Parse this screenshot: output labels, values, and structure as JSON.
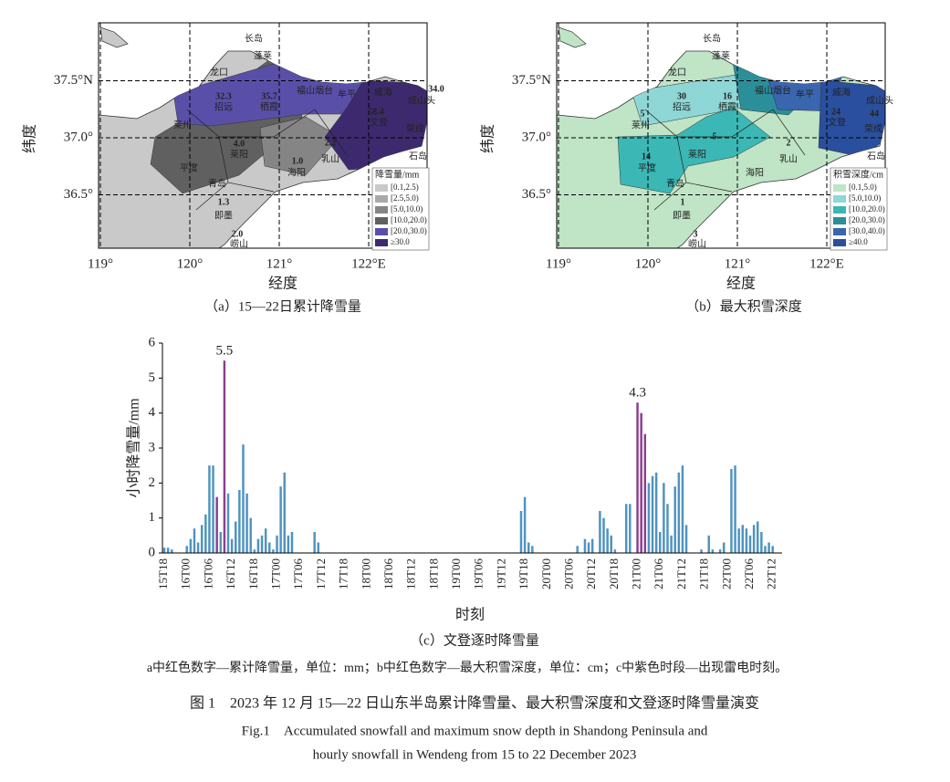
{
  "map_axes": {
    "xticks": [
      {
        "value": 119,
        "label": "119°"
      },
      {
        "value": 120,
        "label": "120°"
      },
      {
        "value": 121,
        "label": "121°"
      },
      {
        "value": 122,
        "label": "122°E"
      }
    ],
    "yticks": [
      {
        "value": 36.5,
        "label": "36.5°"
      },
      {
        "value": 37,
        "label": "37.0°"
      },
      {
        "value": 37.5,
        "label": "37.5°N"
      }
    ],
    "xlabel": "经度",
    "ylabel": "纬度"
  },
  "places": [
    "长岛",
    "蓬莱",
    "龙口",
    "招远",
    "栖霞",
    "福山烟台",
    "牟平",
    "威海",
    "成山头",
    "莱州",
    "文登",
    "荣成",
    "石岛",
    "莱阳",
    "海阳",
    "乳山",
    "平度",
    "青岛",
    "即墨",
    "崂山"
  ],
  "map_a": {
    "caption": "（a）15—22日累计降雪量",
    "legend_title": "降雪量/mm",
    "legend": [
      "[0.1,2.5)",
      "[2.5,5.0)",
      "[5.0,10.0)",
      "[10.0,20.0)",
      "[20.0,30.0)",
      "≥30.0"
    ],
    "colors": [
      "#c9c9c9",
      "#a9a9a9",
      "#858585",
      "#606060",
      "#5a4fa8",
      "#3d2a6e"
    ],
    "labels": [
      "32.3",
      "35.7",
      "58.4",
      "34.0",
      "4.0",
      "2.2",
      "1.0",
      "1.3",
      "2.0"
    ]
  },
  "map_b": {
    "caption": "（b）最大积雪深度",
    "legend_title": "积雪深度/cm",
    "legend": [
      "[0.1,5.0)",
      "[5.0,10.0)",
      "[10.0,20.0)",
      "[20.0,30.0)",
      "[30.0,40.0)",
      "≥40.0"
    ],
    "colors": [
      "#bfe4c6",
      "#8fd6d6",
      "#3bb7b5",
      "#2b8f9a",
      "#3a66b0",
      "#2a4f9e"
    ],
    "labels": [
      "30",
      "16",
      "24",
      "44",
      "5",
      "14",
      "1",
      "3",
      "2",
      "5"
    ]
  },
  "chart_data": {
    "type": "bar",
    "caption": "（c）文登逐时降雪量",
    "xlabel": "时刻",
    "ylabel": "小时降雪量/mm",
    "ylim": [
      0,
      6
    ],
    "yticks": [
      0,
      1,
      2,
      3,
      4,
      5,
      6
    ],
    "categories": [
      "15T18",
      null,
      null,
      null,
      null,
      null,
      "16T00",
      null,
      null,
      null,
      null,
      null,
      "16T06",
      null,
      null,
      null,
      null,
      null,
      "16T12",
      null,
      null,
      null,
      null,
      null,
      "16T18",
      null,
      null,
      null,
      null,
      null,
      "17T00",
      null,
      null,
      null,
      null,
      null,
      "17T06",
      null,
      null,
      null,
      null,
      null,
      "17T12",
      null,
      null,
      null,
      null,
      null,
      "17T18",
      null,
      null,
      null,
      null,
      null,
      "18T00",
      null,
      null,
      null,
      null,
      null,
      "18T06",
      null,
      null,
      null,
      null,
      null,
      "18T12",
      null,
      null,
      null,
      null,
      null,
      "18T18",
      null,
      null,
      null,
      null,
      null,
      "19T00",
      null,
      null,
      null,
      null,
      null,
      "19T06",
      null,
      null,
      null,
      null,
      null,
      "19T12",
      null,
      null,
      null,
      null,
      null,
      "19T18",
      null,
      null,
      null,
      null,
      null,
      "20T00",
      null,
      null,
      null,
      null,
      null,
      "20T06",
      null,
      null,
      null,
      null,
      null,
      "20T12",
      null,
      null,
      null,
      null,
      null,
      "20T18",
      null,
      null,
      null,
      null,
      null,
      "21T00",
      null,
      null,
      null,
      null,
      null,
      "21T06",
      null,
      null,
      null,
      null,
      null,
      "21T12",
      null,
      null,
      null,
      null,
      null,
      "21T18",
      null,
      null,
      null,
      null,
      null,
      "22T00",
      null,
      null,
      null,
      null,
      null,
      "22T06",
      null,
      null,
      null,
      null,
      null,
      "22T12",
      null,
      null
    ],
    "series": [
      {
        "color": "#4f93c0",
        "values": [
          0.15,
          0.15,
          0.1,
          0,
          0,
          0,
          0.2,
          0.4,
          0.7,
          0.3,
          0.8,
          1.1,
          2.5,
          2.5,
          null,
          0.6,
          null,
          1.7,
          0.4,
          0.9,
          1.8,
          3.1,
          1.7,
          1.0,
          0.1,
          0.4,
          0.5,
          0.7,
          0.3,
          0.1,
          0.5,
          1.9,
          2.3,
          0.5,
          0.6,
          0,
          0,
          0,
          0,
          0,
          0.6,
          0.3,
          0,
          0,
          0,
          0,
          0,
          0,
          0,
          0,
          0,
          0,
          0,
          0,
          0,
          0,
          0,
          0,
          0,
          0,
          0,
          0,
          0,
          0,
          0,
          0,
          0,
          0,
          0,
          0,
          0,
          0,
          0,
          0,
          0,
          0,
          0,
          0,
          0,
          0,
          0,
          0,
          0,
          0,
          0,
          0,
          0,
          0,
          0,
          0,
          0,
          0,
          0,
          0,
          0,
          1.2,
          1.6,
          0.3,
          0.2,
          0,
          0,
          0,
          0,
          0,
          0,
          0,
          0,
          0,
          0,
          0,
          0.2,
          0,
          0.4,
          0.3,
          0.4,
          0,
          1.2,
          1.0,
          0.7,
          0.5,
          0.1,
          0,
          0,
          1.4,
          1.4,
          0,
          null,
          null,
          null,
          2.0,
          2.2,
          2.3,
          0.6,
          2.0,
          1.4,
          0.5,
          1.9,
          2.3,
          2.5,
          0.8,
          0,
          0,
          0,
          0.1,
          0,
          0.5,
          0.1,
          0,
          0.1,
          0.3,
          0,
          2.4,
          2.5,
          0.7,
          0.8,
          0.7,
          0.5,
          0.8,
          0.9,
          0.6,
          0.2,
          0.3,
          0.2,
          0,
          0
        ]
      },
      {
        "color": "#8a3f8f",
        "values": [
          null,
          null,
          null,
          null,
          null,
          null,
          null,
          null,
          null,
          null,
          null,
          null,
          null,
          null,
          1.6,
          null,
          5.5,
          null,
          null,
          null,
          null,
          null,
          null,
          null,
          null,
          null,
          null,
          null,
          null,
          null,
          null,
          null,
          null,
          null,
          null,
          null,
          null,
          null,
          null,
          null,
          null,
          null,
          null,
          null,
          null,
          null,
          null,
          null,
          null,
          null,
          null,
          null,
          null,
          null,
          null,
          null,
          null,
          null,
          null,
          null,
          null,
          null,
          null,
          null,
          null,
          null,
          null,
          null,
          null,
          null,
          null,
          null,
          null,
          null,
          null,
          null,
          null,
          null,
          null,
          null,
          null,
          null,
          null,
          null,
          null,
          null,
          null,
          null,
          null,
          null,
          null,
          null,
          null,
          null,
          null,
          null,
          null,
          null,
          null,
          null,
          null,
          null,
          null,
          null,
          null,
          null,
          null,
          null,
          null,
          null,
          null,
          null,
          null,
          null,
          null,
          null,
          null,
          null,
          null,
          null,
          null,
          null,
          null,
          null,
          null,
          null,
          4.3,
          4.0,
          3.4,
          null,
          null,
          null,
          null,
          null,
          null,
          null,
          null,
          null,
          null,
          null,
          null,
          null,
          null,
          null,
          null,
          null,
          null,
          null,
          null,
          null,
          null,
          null,
          null,
          null,
          null,
          null,
          null,
          null,
          null,
          null,
          null,
          null,
          null,
          null,
          null
        ]
      }
    ]
  },
  "note": "a中红色数字—累计降雪量，单位：mm；b中红色数字—最大积雪深度，单位：cm；c中紫色时段—出现雷电时刻。",
  "figure_title": "图 1　2023 年 12 月 15—22 日山东半岛累计降雪量、最大积雪深度和文登逐时降雪量演变",
  "figure_title_en": [
    "Fig.1　Accumulated snowfall and maximum snow depth in Shandong Peninsula and",
    "hourly snowfall in Wendeng from 15 to 22 December 2023"
  ]
}
